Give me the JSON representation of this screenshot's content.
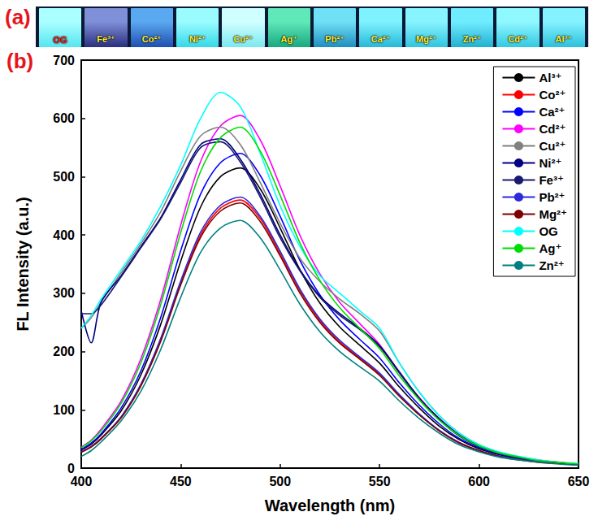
{
  "photo": {
    "label": "(a)",
    "samples": [
      "OG",
      "Fe³⁺",
      "Co²⁺",
      "Ni²⁺",
      "Cu²⁺",
      "Ag⁺",
      "Pb²⁺",
      "Ca²⁺",
      "Mg²⁺",
      "Zn²⁺",
      "Cd²⁺",
      "Al³⁺"
    ]
  },
  "chart_data": {
    "label": "(b)",
    "type": "line",
    "x_label": "Wavelength (nm)",
    "y_label": "FL Intensity (a.u.)",
    "x": [
      400,
      405,
      410,
      420,
      430,
      440,
      450,
      460,
      470,
      480,
      490,
      500,
      510,
      520,
      530,
      540,
      550,
      560,
      570,
      580,
      590,
      600,
      610,
      620,
      630,
      640,
      650
    ],
    "xlim": [
      400,
      650
    ],
    "xticks": [
      400,
      450,
      500,
      550,
      600,
      650
    ],
    "ylim": [
      0,
      700
    ],
    "yticks": [
      0,
      100,
      200,
      300,
      400,
      500,
      600,
      700
    ],
    "grid": false,
    "legend": "top-right",
    "series": [
      {
        "name": "Al³⁺",
        "color": "#000000",
        "values": [
          31,
          41,
          57,
          98,
          160,
          247,
          355,
          448,
          500,
          515,
          479,
          412,
          340,
          283,
          242,
          211,
          180,
          139,
          103,
          72,
          49,
          33,
          23,
          16,
          12,
          9,
          6
        ]
      },
      {
        "name": "Co²⁺",
        "color": "#ff0000",
        "values": [
          28,
          37,
          51,
          87,
          143,
          221,
          317,
          400,
          446,
          460,
          428,
          368,
          304,
          253,
          216,
          189,
          161,
          124,
          92,
          64,
          44,
          30,
          21,
          15,
          11,
          8,
          6
        ]
      },
      {
        "name": "Ca²⁺",
        "color": "#0000ff",
        "values": [
          32,
          43,
          59,
          103,
          167,
          259,
          373,
          470,
          524,
          540,
          502,
          432,
          356,
          297,
          254,
          221,
          189,
          146,
          108,
          76,
          51,
          35,
          24,
          17,
          12,
          9,
          6
        ]
      },
      {
        "name": "Cd²⁺",
        "color": "#ff00ff",
        "values": [
          36,
          48,
          67,
          115,
          188,
          290,
          417,
          526,
          587,
          605,
          563,
          484,
          399,
          333,
          284,
          248,
          212,
          163,
          121,
          85,
          57,
          39,
          27,
          19,
          14,
          10,
          7
        ]
      },
      {
        "name": "Cu²⁺",
        "color": "#808080",
        "values": [
          240,
          258,
          285,
          335,
          385,
          440,
          510,
          570,
          585,
          555,
          490,
          420,
          360,
          320,
          290,
          265,
          235,
          180,
          130,
          90,
          60,
          40,
          27,
          19,
          13,
          10,
          7
        ]
      },
      {
        "name": "Ni²⁺",
        "color": "#000080",
        "values": [
          270,
          215,
          285,
          330,
          380,
          430,
          495,
          555,
          565,
          530,
          470,
          400,
          340,
          295,
          265,
          240,
          210,
          165,
          120,
          85,
          57,
          38,
          26,
          18,
          12,
          9,
          7
        ]
      },
      {
        "name": "Fe³⁺",
        "color": "#191970",
        "values": [
          265,
          265,
          280,
          328,
          378,
          428,
          490,
          550,
          560,
          525,
          465,
          395,
          338,
          293,
          262,
          238,
          208,
          163,
          118,
          83,
          55,
          37,
          25,
          17,
          12,
          9,
          7
        ]
      },
      {
        "name": "Pb²⁺",
        "color": "#2b2bd9",
        "values": [
          28,
          37,
          51,
          88,
          144,
          223,
          321,
          405,
          451,
          465,
          432,
          372,
          307,
          256,
          219,
          191,
          163,
          126,
          93,
          65,
          44,
          30,
          21,
          15,
          11,
          8,
          6
        ]
      },
      {
        "name": "Mg²⁺",
        "color": "#800000",
        "values": [
          27,
          36,
          50,
          86,
          141,
          218,
          314,
          396,
          441,
          455,
          423,
          364,
          300,
          250,
          214,
          187,
          159,
          123,
          91,
          64,
          43,
          30,
          20,
          14,
          10,
          8,
          5
        ]
      },
      {
        "name": "OG",
        "color": "#00ffff",
        "values": [
          240,
          262,
          290,
          340,
          390,
          450,
          520,
          600,
          645,
          620,
          540,
          450,
          380,
          330,
          300,
          270,
          240,
          180,
          130,
          90,
          60,
          40,
          28,
          20,
          14,
          10,
          8
        ]
      },
      {
        "name": "Ag⁺",
        "color": "#00dd00",
        "values": [
          35,
          47,
          64,
          111,
          181,
          281,
          404,
          509,
          567,
          585,
          544,
          468,
          386,
          322,
          275,
          240,
          205,
          158,
          117,
          82,
          56,
          38,
          26,
          19,
          13,
          10,
          7
        ]
      },
      {
        "name": "Zn²⁺",
        "color": "#008080",
        "values": [
          20,
          30,
          45,
          81,
          132,
          204,
          293,
          370,
          412,
          425,
          395,
          340,
          281,
          234,
          200,
          174,
          149,
          115,
          85,
          60,
          40,
          28,
          19,
          14,
          10,
          7,
          5
        ]
      }
    ]
  }
}
